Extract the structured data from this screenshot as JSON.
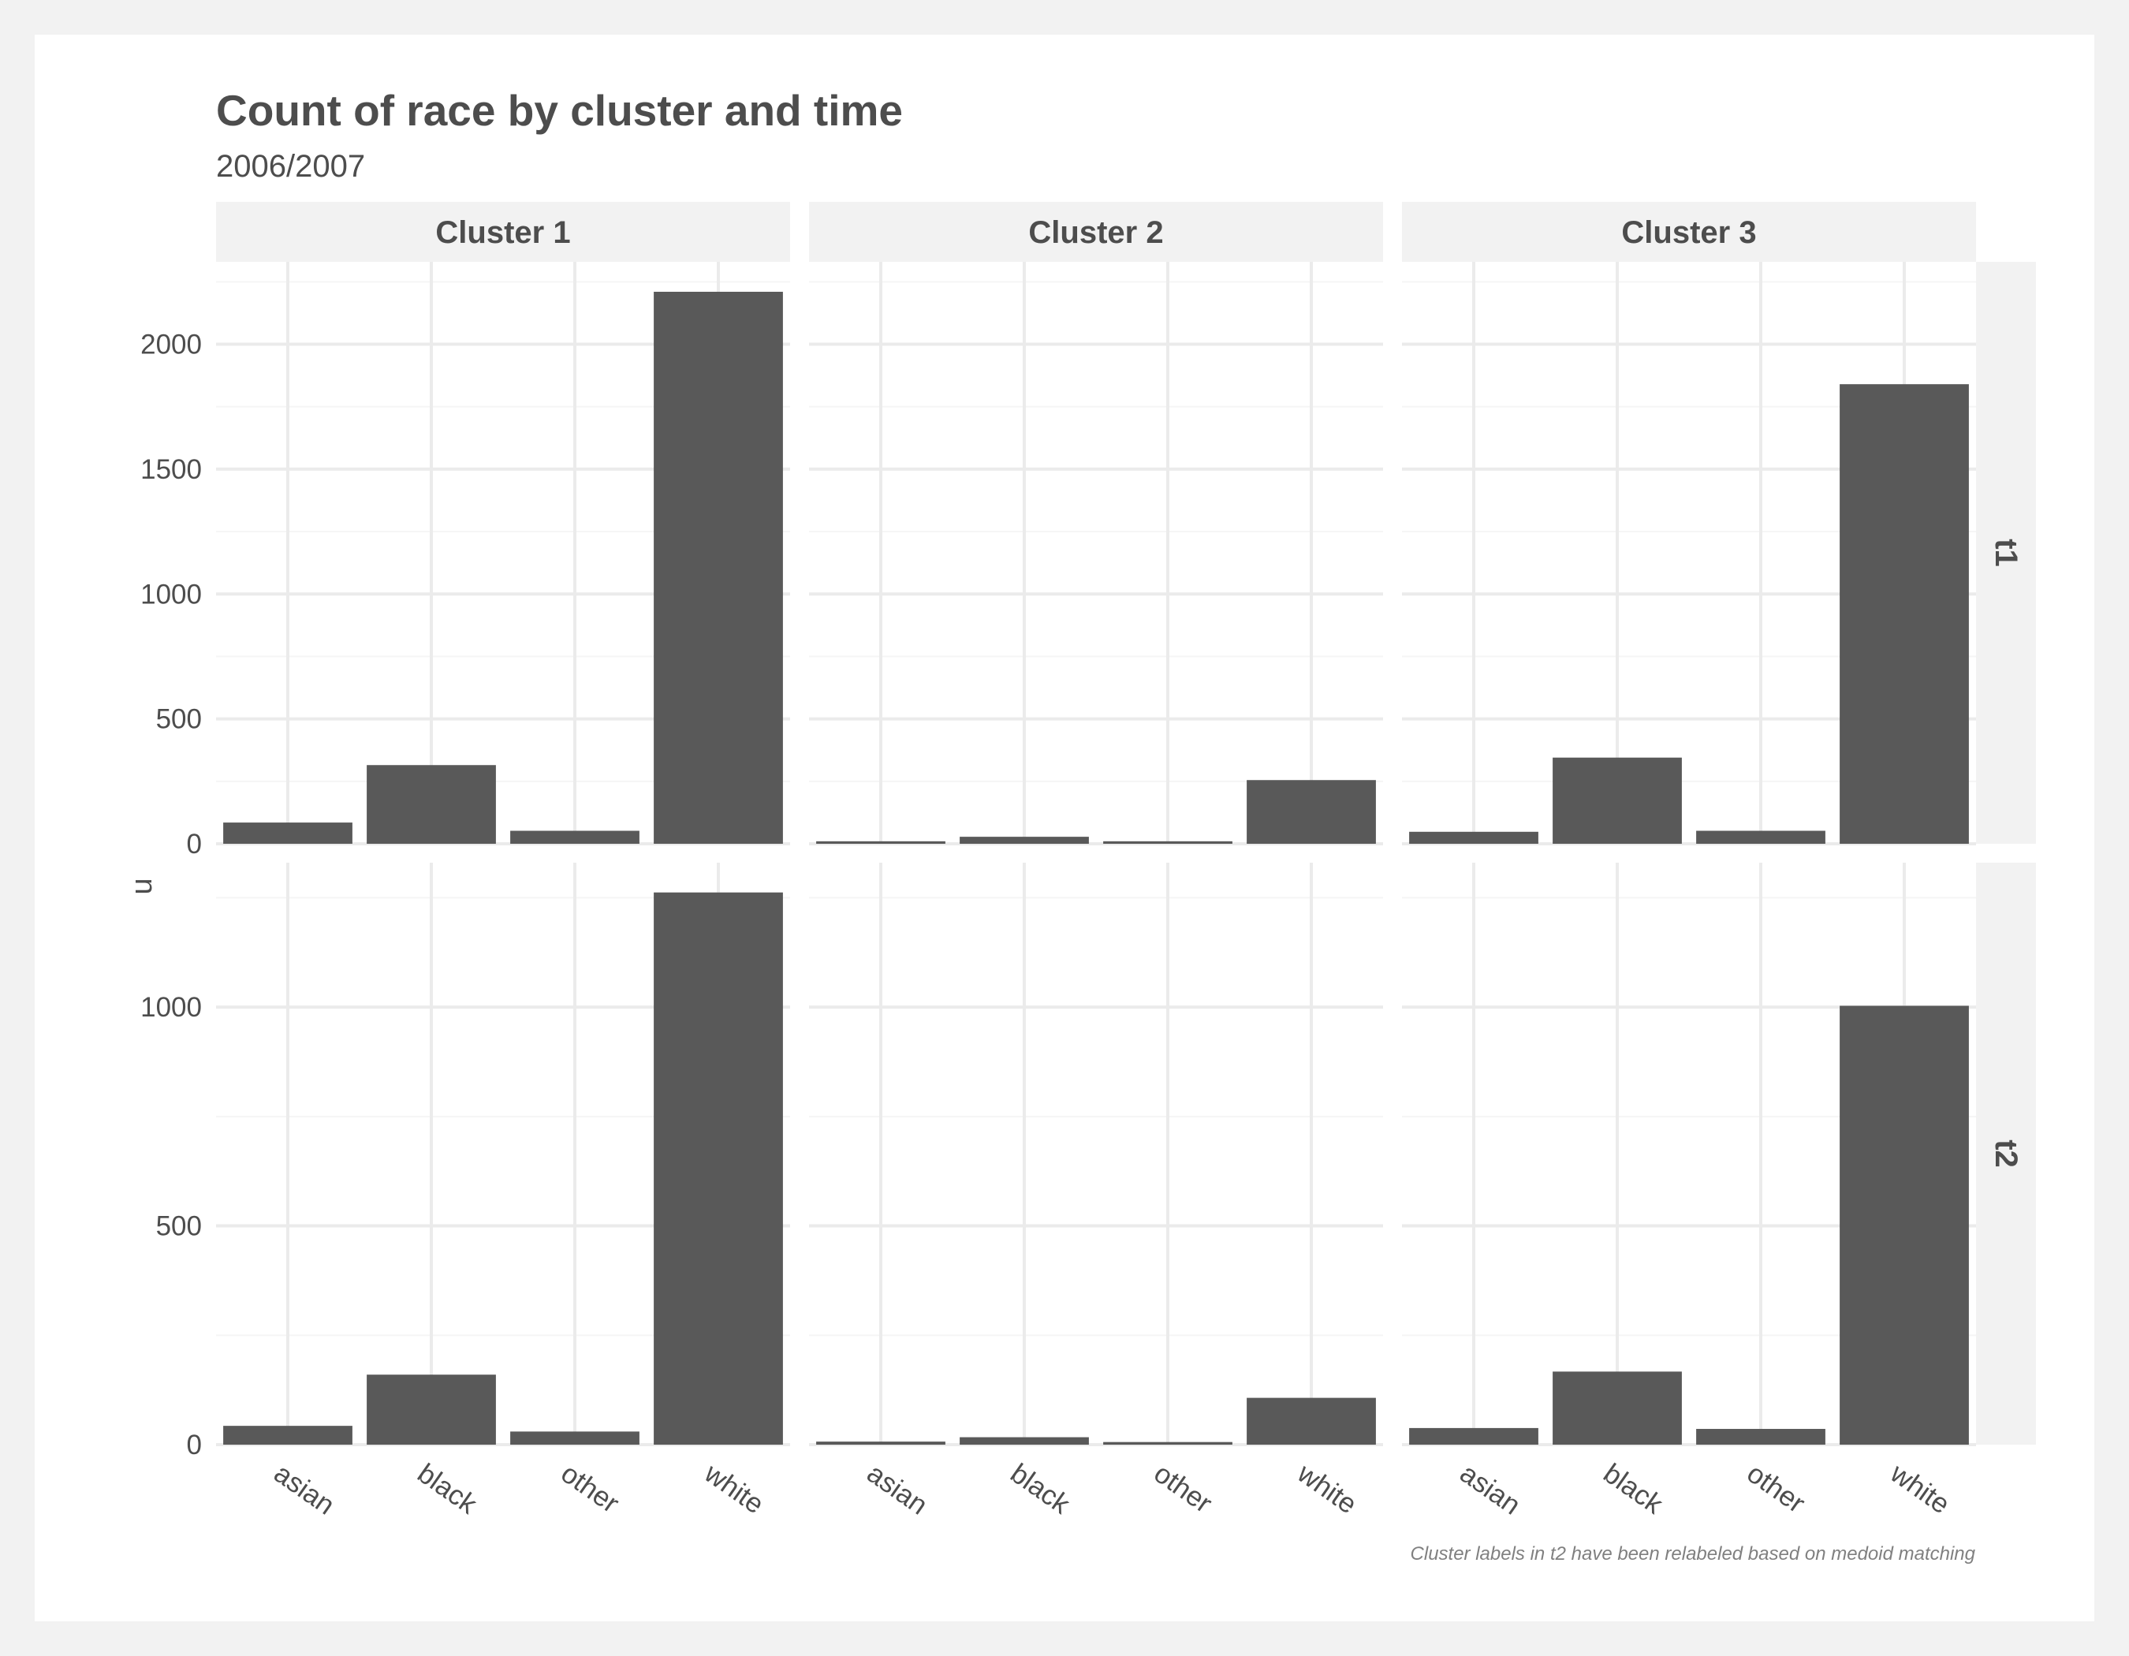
{
  "chart_data": {
    "type": "bar",
    "title": "Count of race by cluster and time",
    "subtitle": "2006/2007",
    "ylabel": "n",
    "xlabel": "",
    "caption": "Cluster labels in t2 have been relabeled based on medoid matching",
    "categories": [
      "asian",
      "black",
      "other",
      "white"
    ],
    "columns": [
      "Cluster 1",
      "Cluster 2",
      "Cluster 3"
    ],
    "rows": [
      "t1",
      "t2"
    ],
    "bar_color": "#595959",
    "background": "#ffffff",
    "strip_color": "#f2f2f2",
    "grid": true,
    "panels": [
      {
        "row": "t1",
        "col": "Cluster 1",
        "values": [
          85,
          315,
          52,
          2210
        ]
      },
      {
        "row": "t1",
        "col": "Cluster 2",
        "values": [
          10,
          28,
          10,
          255
        ]
      },
      {
        "row": "t1",
        "col": "Cluster 3",
        "values": [
          48,
          345,
          52,
          1840
        ]
      },
      {
        "row": "t2",
        "col": "Cluster 1",
        "values": [
          43,
          160,
          30,
          1262
        ]
      },
      {
        "row": "t2",
        "col": "Cluster 2",
        "values": [
          7,
          17,
          6,
          107
        ]
      },
      {
        "row": "t2",
        "col": "Cluster 3",
        "values": [
          38,
          167,
          36,
          1003
        ]
      }
    ],
    "row_axes": [
      {
        "row": "t1",
        "ylim": [
          0,
          2330
        ],
        "ticks": [
          0,
          500,
          1000,
          1500,
          2000
        ]
      },
      {
        "row": "t2",
        "ylim": [
          0,
          1330
        ],
        "ticks": [
          0,
          500,
          1000
        ]
      }
    ]
  }
}
